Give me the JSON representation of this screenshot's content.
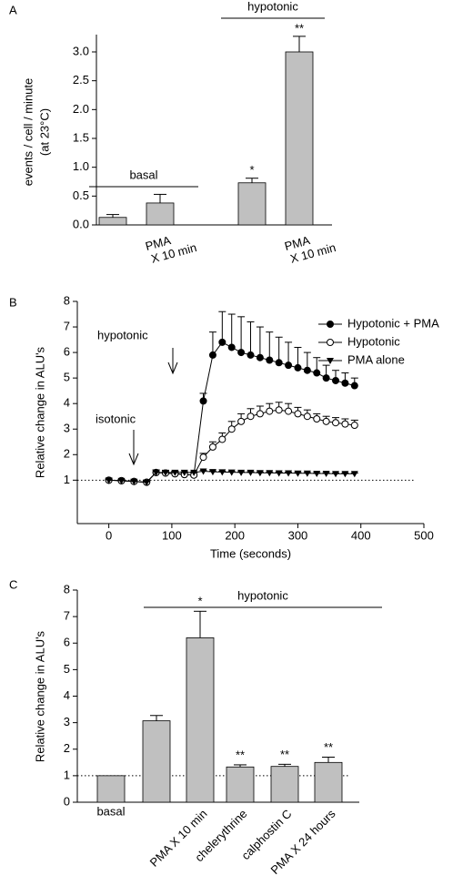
{
  "chart_data": [
    {
      "type": "bar",
      "panel": "A",
      "ylabel": [
        "events / cell / minute",
        "(at 23°C)"
      ],
      "categories": [
        null,
        "PMA X 10 min",
        null,
        "PMA X 10 min"
      ],
      "values": [
        0.13,
        0.38,
        0.73,
        3.0
      ],
      "errors": [
        0.05,
        0.15,
        0.08,
        0.27
      ],
      "significance": [
        null,
        null,
        "*",
        "**"
      ],
      "groups": [
        "basal",
        "hypotonic"
      ],
      "color": "#c0c0c0",
      "ylim": [
        0,
        3.3
      ],
      "yticks": [
        {
          "value": 0,
          "label": "0.0"
        },
        0.5,
        {
          "value": 1,
          "label": "1.0"
        },
        1.5,
        {
          "value": 2,
          "label": "2.0"
        },
        2.5,
        {
          "value": 3,
          "label": "3.0"
        }
      ]
    },
    {
      "type": "line",
      "panel": "B",
      "xlabel": "Time (seconds)",
      "ylabel": "Relative change in ALU's",
      "annotations": [
        "isotonic",
        "hypotonic"
      ],
      "reference_line": 1,
      "x": [
        0,
        20,
        40,
        60,
        75,
        90,
        105,
        120,
        135,
        150,
        165,
        180,
        195,
        210,
        225,
        240,
        255,
        270,
        285,
        300,
        315,
        330,
        345,
        360,
        375,
        390
      ],
      "series": [
        {
          "name": "Hypotonic + PMA",
          "color": "#000000",
          "marker": "circle",
          "values": [
            1.0,
            0.98,
            0.95,
            0.92,
            1.3,
            1.28,
            1.25,
            1.22,
            1.2,
            4.1,
            5.9,
            6.4,
            6.2,
            6.0,
            5.9,
            5.8,
            5.7,
            5.6,
            5.5,
            5.4,
            5.3,
            5.2,
            5.0,
            4.9,
            4.8,
            4.7
          ],
          "errors": [
            0.05,
            0.05,
            0.05,
            0.05,
            0.1,
            0.1,
            0.1,
            0.1,
            0.1,
            0.3,
            0.9,
            1.2,
            1.3,
            1.4,
            1.3,
            1.2,
            1.1,
            1.0,
            0.9,
            0.8,
            0.7,
            0.6,
            0.5,
            0.4,
            0.4,
            0.3
          ]
        },
        {
          "name": "Hypotonic",
          "color": "#000000",
          "marker": "open-circle",
          "values": [
            1.0,
            0.98,
            0.95,
            0.92,
            1.3,
            1.28,
            1.25,
            1.22,
            1.2,
            1.9,
            2.3,
            2.6,
            3.0,
            3.3,
            3.5,
            3.6,
            3.7,
            3.75,
            3.7,
            3.6,
            3.5,
            3.4,
            3.3,
            3.25,
            3.2,
            3.15
          ],
          "errors": [
            0.05,
            0.05,
            0.05,
            0.05,
            0.1,
            0.1,
            0.1,
            0.1,
            0.1,
            0.15,
            0.2,
            0.25,
            0.3,
            0.3,
            0.3,
            0.3,
            0.3,
            0.3,
            0.3,
            0.25,
            0.25,
            0.2,
            0.2,
            0.2,
            0.2,
            0.2
          ]
        },
        {
          "name": "PMA alone",
          "color": "#000000",
          "marker": "triangle-down",
          "values": [
            1.0,
            0.98,
            0.95,
            0.92,
            1.3,
            1.3,
            1.3,
            1.3,
            1.3,
            1.35,
            1.33,
            1.32,
            1.31,
            1.3,
            1.3,
            1.29,
            1.29,
            1.28,
            1.28,
            1.27,
            1.27,
            1.26,
            1.26,
            1.25,
            1.25,
            1.25
          ],
          "errors": [
            0.02,
            0.02,
            0.02,
            0.02,
            0.03,
            0.03,
            0.03,
            0.03,
            0.03,
            0.03,
            0.03,
            0.03,
            0.03,
            0.03,
            0.03,
            0.03,
            0.03,
            0.03,
            0.03,
            0.03,
            0.03,
            0.03,
            0.03,
            0.03,
            0.03,
            0.03
          ]
        }
      ],
      "xlim": [
        -50,
        500
      ],
      "xticks": [
        0,
        100,
        200,
        300,
        400,
        500
      ],
      "ylim": [
        -0.7,
        8
      ],
      "yticks": [
        1,
        2,
        3,
        4,
        5,
        6,
        7,
        8
      ],
      "legend": "right"
    },
    {
      "type": "bar",
      "panel": "C",
      "ylabel": "Relative change in ALU's",
      "categories": [
        "basal",
        null,
        "PMA X 10 min",
        "chelerythrine",
        "calphostin C",
        "PMA X 24 hours"
      ],
      "values": [
        1.0,
        3.07,
        6.2,
        1.33,
        1.35,
        1.5
      ],
      "errors": [
        0,
        0.2,
        1.0,
        0.08,
        0.08,
        0.2
      ],
      "significance": [
        null,
        null,
        "*",
        "**",
        "**",
        "**"
      ],
      "groups": [
        "hypotonic"
      ],
      "reference_line": 1,
      "color": "#c0c0c0",
      "ylim": [
        0,
        8
      ],
      "yticks": [
        0,
        1,
        2,
        3,
        4,
        5,
        6,
        7,
        8
      ]
    }
  ]
}
